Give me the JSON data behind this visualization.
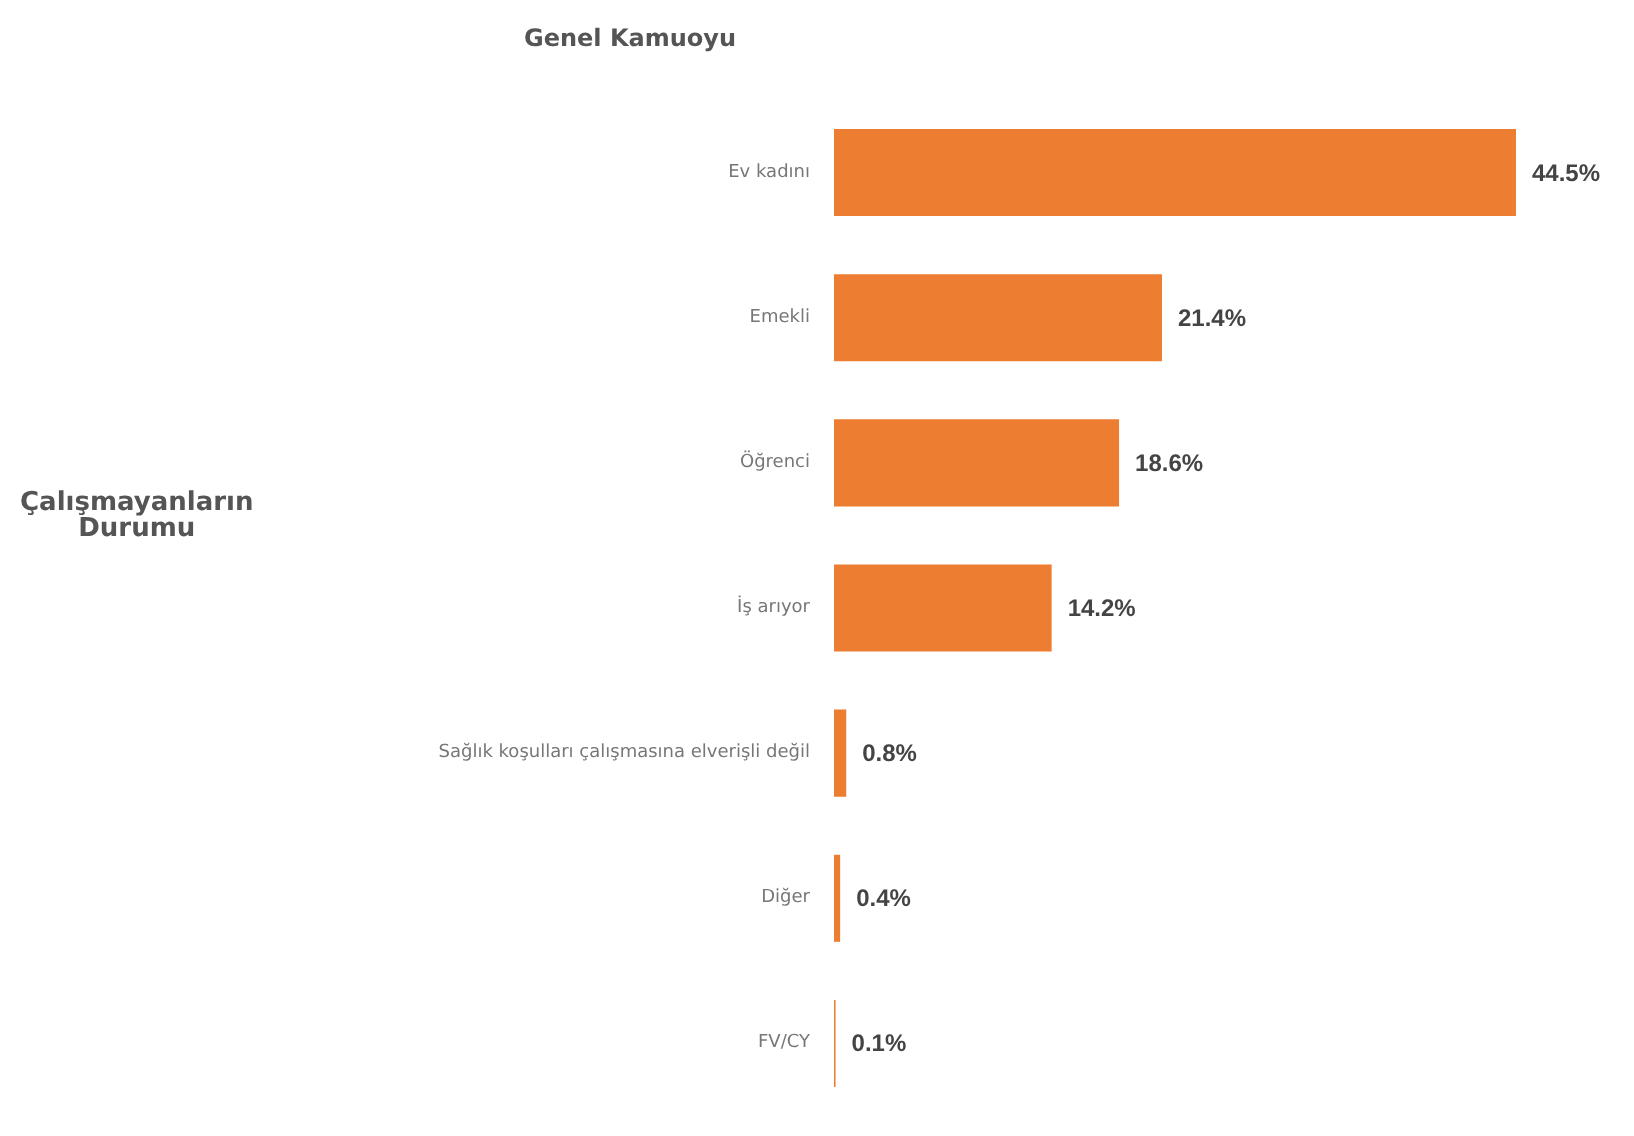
{
  "chart_data": {
    "type": "bar",
    "orientation": "horizontal",
    "title": "Genel Kamuoyu",
    "annotations": [
      "Çalışmayanların\nDurumu"
    ],
    "categories": [
      "Ev kadını",
      "Emekli",
      "Öğrenci",
      "İş arıyor",
      "Sağlık koşulları çalışmasına elverişli değil",
      "Diğer",
      "FV/CY"
    ],
    "values": [
      44.5,
      21.4,
      18.6,
      14.2,
      0.8,
      0.4,
      0.1
    ],
    "value_labels": [
      "44.5%",
      "21.4%",
      "18.6%",
      "14.2%",
      "0.8%",
      "0.4%",
      "0.1%"
    ],
    "color": "#ed7d31"
  }
}
